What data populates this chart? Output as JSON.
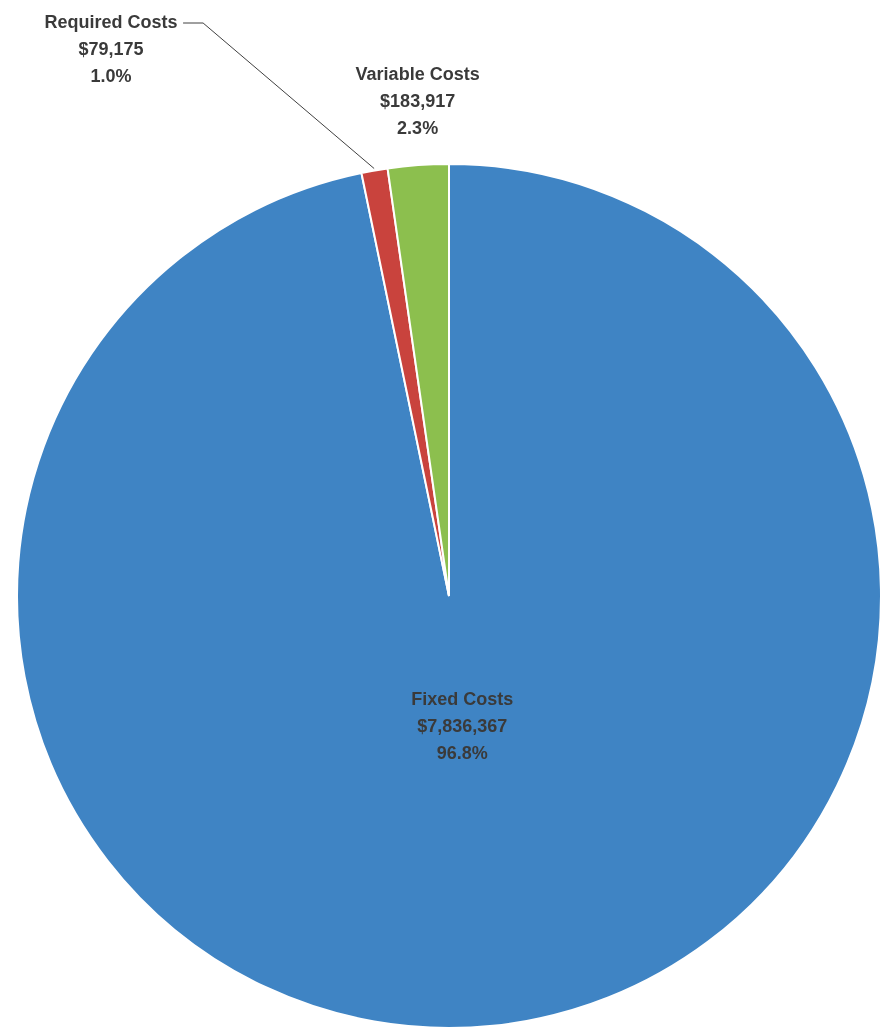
{
  "chart_data": {
    "type": "pie",
    "categories": [
      "Fixed Costs",
      "Required Costs",
      "Variable Costs"
    ],
    "values": [
      7836367,
      79175,
      183917
    ],
    "colors": [
      "#3f84c4",
      "#c9433d",
      "#8cbf4e"
    ],
    "value_labels": [
      "$7,836,367\n96.8%",
      "$79,175\n1.0%",
      "$183,917\n2.3%"
    ]
  }
}
